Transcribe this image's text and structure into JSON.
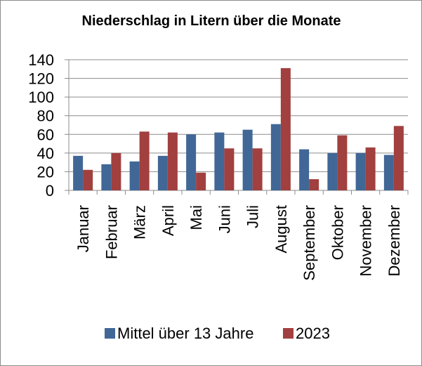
{
  "chart_data": {
    "type": "bar",
    "title": "Niederschlag in Litern über die Monate",
    "xlabel": "",
    "ylabel": "",
    "ylim": [
      0,
      140
    ],
    "yticks": [
      0,
      20,
      40,
      60,
      80,
      100,
      120,
      140
    ],
    "grid": true,
    "legend_position": "bottom",
    "categories": [
      "Januar",
      "Februar",
      "März",
      "April",
      "Mai",
      "Juni",
      "Juli",
      "August",
      "September",
      "Oktober",
      "November",
      "Dezember"
    ],
    "series": [
      {
        "name": "Mittel über 13 Jahre",
        "color": "#416796",
        "values": [
          37,
          28,
          31,
          37,
          60,
          62,
          65,
          71,
          44,
          40,
          40,
          38
        ]
      },
      {
        "name": "2023",
        "color": "#a1403f",
        "values": [
          22,
          40,
          63,
          62,
          19,
          45,
          45,
          131,
          12,
          59,
          46,
          69
        ]
      }
    ]
  }
}
